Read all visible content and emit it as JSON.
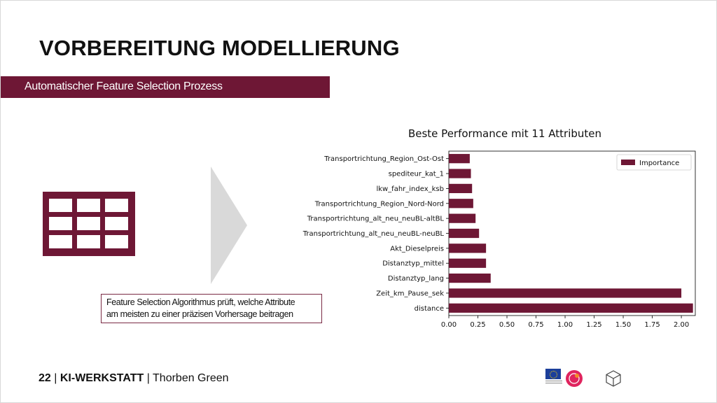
{
  "slide": {
    "title": "VORBEREITUNG MODELLIERUNG",
    "banner": "Automatischer Feature Selection Prozess",
    "note_lines": [
      "Feature Selection Algorithmus prüft,  welche Attribute",
      "am meisten zu einer präzisen Vorhersage beitragen"
    ]
  },
  "footer": {
    "page_number": "22",
    "separator": "|",
    "brand": "KI-WERKSTATT",
    "author": "Thorben  Green"
  },
  "icons": [
    "table-icon",
    "triangle-arrow-icon",
    "eu-flag-icon",
    "partner-logo-icon",
    "cube-icon"
  ],
  "colors": {
    "accent": "#6e1735",
    "arrow": "#d9d9d9"
  },
  "chart_data": {
    "type": "bar",
    "orientation": "horizontal",
    "title": "Beste Performance mit 11 Attributen",
    "categories": [
      "Transportrichtung_Region_Ost-Ost",
      "spediteur_kat_1",
      "lkw_fahr_index_ksb",
      "Transportrichtung_Region_Nord-Nord",
      "Transportrichtung_alt_neu_neuBL-altBL",
      "Transportrichtung_alt_neu_neuBL-neuBL",
      "Akt_Dieselpreis",
      "Distanztyp_mittel",
      "Distanztyp_lang",
      "Zeit_km_Pause_sek",
      "distance"
    ],
    "series": [
      {
        "name": "Importance",
        "values": [
          0.18,
          0.19,
          0.2,
          0.21,
          0.23,
          0.26,
          0.32,
          0.32,
          0.36,
          2.0,
          2.1
        ]
      }
    ],
    "xlim": [
      0,
      2.1
    ],
    "xticks": [
      "0.00",
      "0.25",
      "0.50",
      "0.75",
      "1.00",
      "1.25",
      "1.50",
      "1.75",
      "2.00"
    ],
    "xtick_values": [
      0,
      0.25,
      0.5,
      0.75,
      1.0,
      1.25,
      1.5,
      1.75,
      2.0
    ],
    "legend": "top-right",
    "grid": false
  }
}
